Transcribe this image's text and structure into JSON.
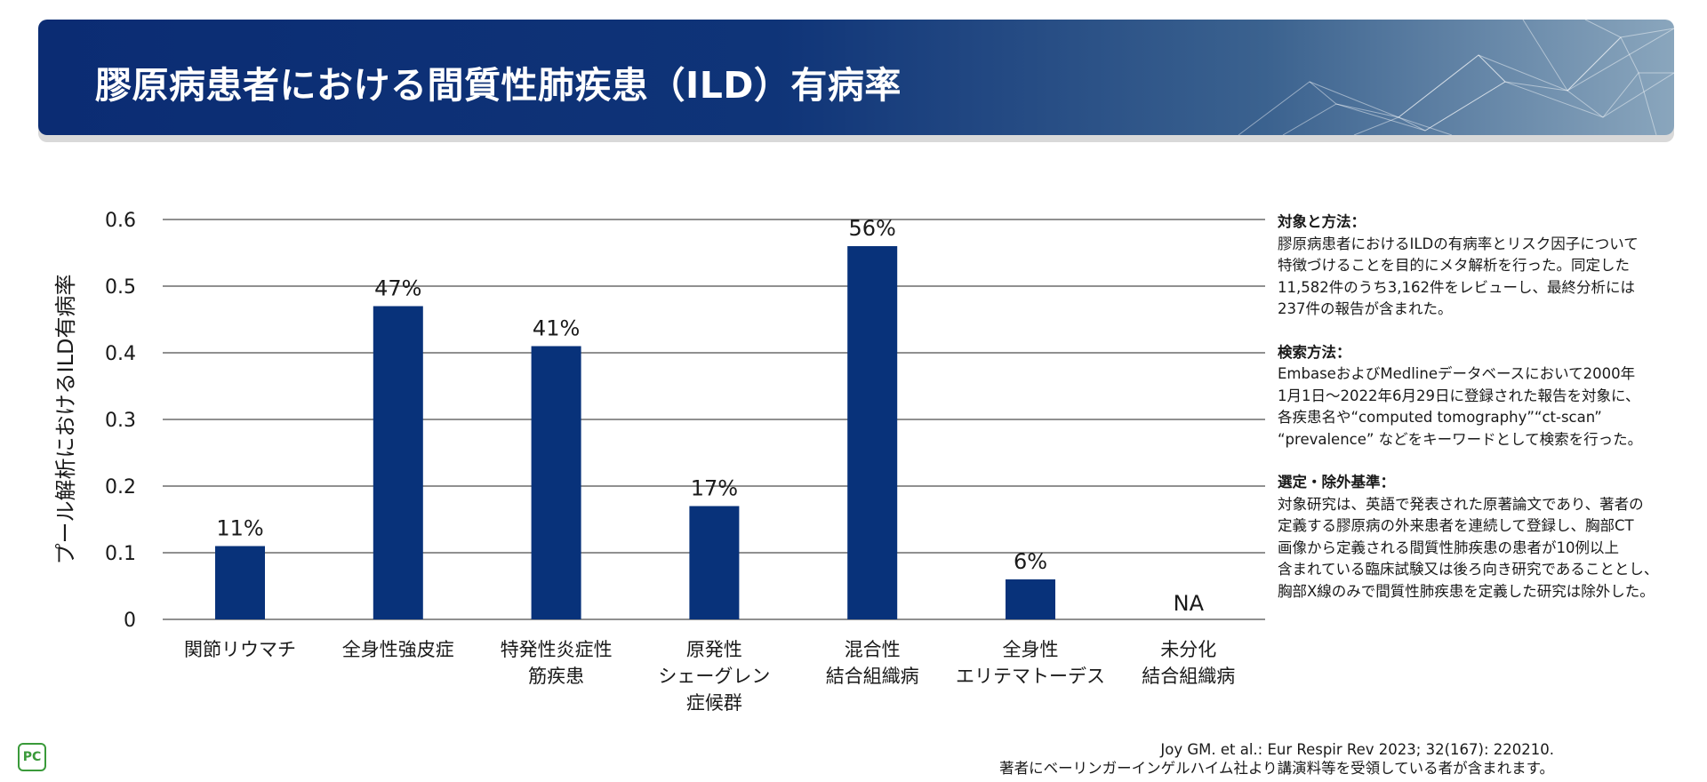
{
  "header": {
    "title": "膠原病患者における間質性肺疾患（ILD）有病率"
  },
  "chart_data": {
    "type": "bar",
    "title": "",
    "ylabel": "プール解析におけるILD有病率",
    "xlabel": "",
    "ylim": [
      0,
      0.6
    ],
    "yticks": [
      0,
      0.1,
      0.2,
      0.3,
      0.4,
      0.5,
      0.6
    ],
    "ytick_labels": [
      "0",
      "0.1",
      "0.2",
      "0.3",
      "0.4",
      "0.5",
      "0.6"
    ],
    "categories": [
      [
        "関節リウマチ"
      ],
      [
        "全身性強皮症"
      ],
      [
        "特発性炎症性",
        "筋疾患"
      ],
      [
        "原発性",
        "シェーグレン",
        "症候群"
      ],
      [
        "混合性",
        "結合組織病"
      ],
      [
        "全身性",
        "エリテマトーデス"
      ],
      [
        "未分化",
        "結合組織病"
      ]
    ],
    "values": [
      0.11,
      0.47,
      0.41,
      0.17,
      0.56,
      0.06,
      null
    ],
    "data_labels": [
      "11%",
      "47%",
      "41%",
      "17%",
      "56%",
      "6%",
      "NA"
    ],
    "bar_color": "#08327a",
    "grid": true
  },
  "side_notes": [
    {
      "heading": "対象と方法：",
      "lines": [
        "膠原病患者におけるILDの有病率とリスク因子について",
        "特徴づけることを目的にメタ解析を行った。同定した",
        "11,582件のうち3,162件をレビューし、最終分析には",
        "237件の報告が含まれた。"
      ]
    },
    {
      "heading": "検索方法：",
      "lines": [
        "EmbaseおよびMedlineデータベースにおいて2000年",
        "1月1日〜2022年6月29日に登録された報告を対象に、",
        "各疾患名や“computed tomography”“ct-scan”",
        "“prevalence” などをキーワードとして検索を行った。"
      ]
    },
    {
      "heading": "選定・除外基準：",
      "lines": [
        "対象研究は、英語で発表された原著論文であり、著者の",
        "定義する膠原病の外来患者を連続して登録し、胸部CT",
        "画像から定義される間質性肺疾患の患者が10例以上",
        "含まれている臨床試験又は後ろ向き研究であることとし、",
        "胸部X線のみで間質性肺疾患を定義した研究は除外した。"
      ]
    }
  ],
  "citation": {
    "line1": "Joy GM. et al.: Eur Respir Rev 2023; 32(167): 220210.",
    "line2": "著者にベーリンガーインゲルハイム社より講演料等を受領している者が含まれます。"
  },
  "logo": {
    "text": "PC"
  }
}
